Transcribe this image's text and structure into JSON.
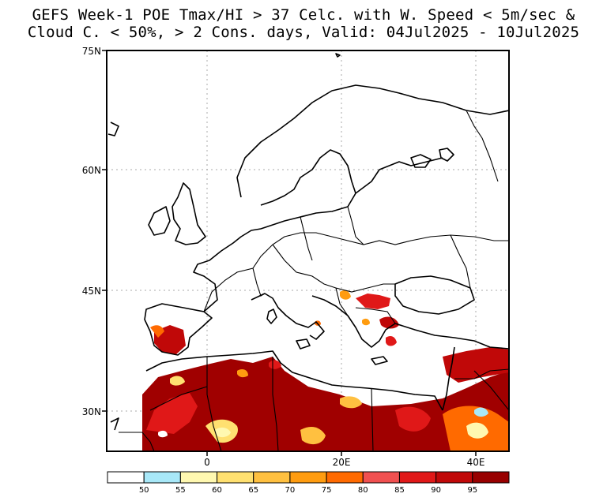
{
  "title": {
    "line1": "GEFS Week-1 POE Tmax/HI > 37 Celc. with W. Speed < 5m/sec &",
    "line2": "Cloud C. < 50%, > 2 Cons. days, Valid: 04Jul2025 - 10Jul2025"
  },
  "map": {
    "region": "Europe / North Africa",
    "lat_labels": [
      "75N",
      "60N",
      "45N",
      "30N"
    ],
    "lon_labels": [
      "0",
      "20E",
      "40E"
    ],
    "gridlines": "dotted"
  },
  "colorbar": {
    "labels": [
      "50",
      "55",
      "60",
      "65",
      "70",
      "75",
      "80",
      "85",
      "90",
      "95"
    ],
    "colors": [
      "#ffffff",
      "#a8e8f8",
      "#fff8b0",
      "#ffe070",
      "#ffc040",
      "#ff9c10",
      "#ff6a00",
      "#f05050",
      "#e01818",
      "#c00808",
      "#980000"
    ]
  }
}
